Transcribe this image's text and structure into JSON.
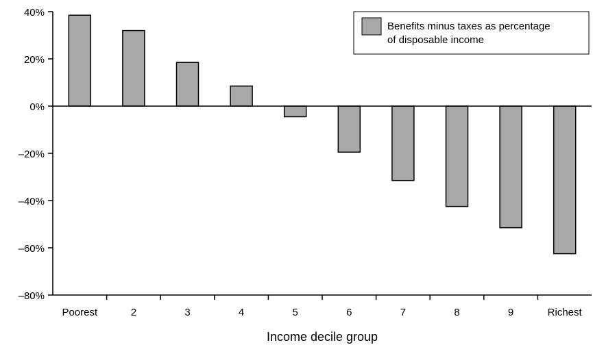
{
  "chart_data": {
    "type": "bar",
    "categories": [
      "Poorest",
      "2",
      "3",
      "4",
      "5",
      "6",
      "7",
      "8",
      "9",
      "Richest"
    ],
    "series": [
      {
        "name": "Benefits minus taxes as percentage of disposable income",
        "values": [
          38.5,
          32,
          18.5,
          8.5,
          -4.5,
          -19.5,
          -31.5,
          -42.5,
          -51.5,
          -62.5
        ]
      }
    ],
    "xlabel": "Income decile group",
    "ylabel": "",
    "ylim": [
      -80,
      40
    ],
    "yticks": [
      40,
      20,
      0,
      -20,
      -40,
      -60,
      -80
    ],
    "ytick_labels": [
      "40%",
      "20%",
      "0%",
      "–20%",
      "–40%",
      "–60%",
      "–80%"
    ],
    "legend": {
      "position": "top-right",
      "lines": [
        "Benefits minus taxes as percentage",
        "of disposable income"
      ]
    },
    "grid": false,
    "colors": {
      "bar_fill": "#a8a8a8",
      "bar_stroke": "#000000",
      "axis": "#000000"
    }
  }
}
